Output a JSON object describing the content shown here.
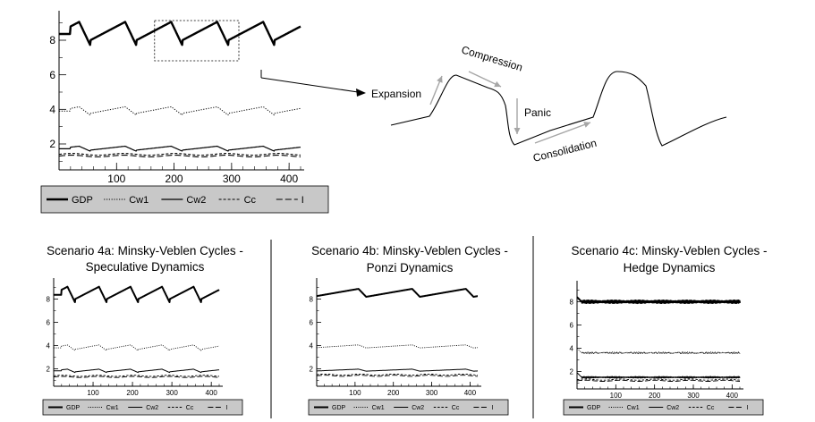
{
  "colors": {
    "line": "#000000",
    "legend_bg": "#c8c8c8",
    "arrow": "#a6a6a6",
    "divider": "#000000"
  },
  "chart_data": [
    {
      "id": "top",
      "type": "line",
      "title": "",
      "xlim": [
        0,
        420
      ],
      "ylim": [
        0.5,
        9.5
      ],
      "xticks": [
        100,
        200,
        300,
        400
      ],
      "yticks": [
        2,
        4,
        6,
        8
      ],
      "highlight_box_x": [
        135,
        350
      ],
      "series": [
        {
          "name": "GDP",
          "style": "solid-thick",
          "level": 7.8,
          "pattern": "cycle",
          "x": [
            0,
            130,
            165,
            285,
            360,
            405
          ],
          "y": [
            7.8,
            7.1,
            9.2,
            7.2,
            7.9,
            9.0
          ]
        },
        {
          "name": "Cw1",
          "style": "dotted",
          "level": 3.7,
          "pattern": "cycle"
        },
        {
          "name": "Cw2",
          "style": "solid",
          "level": 1.6,
          "pattern": "cycle"
        },
        {
          "name": "Cc",
          "style": "dashed-short",
          "level": 1.4,
          "pattern": "flat"
        },
        {
          "name": "I",
          "style": "dashed-long",
          "level": 1.3,
          "pattern": "flat"
        }
      ],
      "legend": [
        "GDP",
        "Cw1",
        "Cw2",
        "Cc",
        "I"
      ]
    },
    {
      "id": "4a",
      "type": "line",
      "title": "Scenario 4a: Minsky-Veblen Cycles - Speculative Dynamics",
      "title_lines": [
        "Scenario 4a: Minsky-Veblen Cycles -",
        "Speculative Dynamics"
      ],
      "xlim": [
        0,
        420
      ],
      "ylim": [
        0.5,
        9.5
      ],
      "xticks": [
        100,
        200,
        300,
        400
      ],
      "yticks": [
        2,
        4,
        6,
        8
      ],
      "series": [
        {
          "name": "GDP",
          "style": "solid-thick",
          "level": 7.8,
          "pattern": "cycle"
        },
        {
          "name": "Cw1",
          "style": "dotted",
          "level": 3.6,
          "pattern": "cycle"
        },
        {
          "name": "Cw2",
          "style": "solid",
          "level": 1.7,
          "pattern": "cycle"
        },
        {
          "name": "Cc",
          "style": "dashed-short",
          "level": 1.4,
          "pattern": "flat"
        },
        {
          "name": "I",
          "style": "dashed-long",
          "level": 1.3,
          "pattern": "flat"
        }
      ],
      "legend": [
        "GDP",
        "Cw1",
        "Cw2",
        "Cc",
        "I"
      ]
    },
    {
      "id": "4b",
      "type": "line",
      "title": "Scenario 4b: Minsky-Veblen Cycles - Ponzi Dynamics",
      "title_lines": [
        "Scenario 4b: Minsky-Veblen Cycles -",
        "Ponzi Dynamics"
      ],
      "xlim": [
        0,
        420
      ],
      "ylim": [
        0.5,
        9.5
      ],
      "xticks": [
        100,
        200,
        300,
        400
      ],
      "yticks": [
        2,
        4,
        6,
        8
      ],
      "series": [
        {
          "name": "GDP",
          "style": "solid-thick",
          "level": 8.2,
          "pattern": "slow"
        },
        {
          "name": "Cw1",
          "style": "dotted",
          "level": 3.8,
          "pattern": "slow"
        },
        {
          "name": "Cw2",
          "style": "solid",
          "level": 1.8,
          "pattern": "slow"
        },
        {
          "name": "Cc",
          "style": "dashed-short",
          "level": 1.5,
          "pattern": "flat"
        },
        {
          "name": "I",
          "style": "dashed-long",
          "level": 1.4,
          "pattern": "flat"
        }
      ],
      "legend": [
        "GDP",
        "Cw1",
        "Cw2",
        "Cc",
        "I"
      ]
    },
    {
      "id": "4c",
      "type": "line",
      "title": "Scenario 4c: Minsky-Veblen Cycles - Hedge Dynamics",
      "title_lines": [
        "Scenario 4c: Minsky-Veblen Cycles -",
        "Hedge Dynamics"
      ],
      "xlim": [
        0,
        420
      ],
      "ylim": [
        0.5,
        9.5
      ],
      "xticks": [
        100,
        200,
        300,
        400
      ],
      "yticks": [
        2,
        4,
        6,
        8
      ],
      "series": [
        {
          "name": "GDP",
          "style": "solid-thick",
          "level": 8.0,
          "pattern": "noise"
        },
        {
          "name": "Cw1",
          "style": "dotted",
          "level": 3.6,
          "pattern": "noise"
        },
        {
          "name": "Cw2",
          "style": "solid",
          "level": 1.5,
          "pattern": "noise"
        },
        {
          "name": "Cc",
          "style": "dashed-short",
          "level": 1.3,
          "pattern": "flat"
        },
        {
          "name": "I",
          "style": "dashed-long",
          "level": 1.2,
          "pattern": "flat"
        }
      ],
      "legend": [
        "GDP",
        "Cw1",
        "Cw2",
        "Cc",
        "I"
      ]
    }
  ],
  "cycle_diagram": {
    "labels": {
      "expansion": "Expansion",
      "compression": "Compression",
      "panic": "Panic",
      "consolidation": "Consolidation"
    }
  }
}
